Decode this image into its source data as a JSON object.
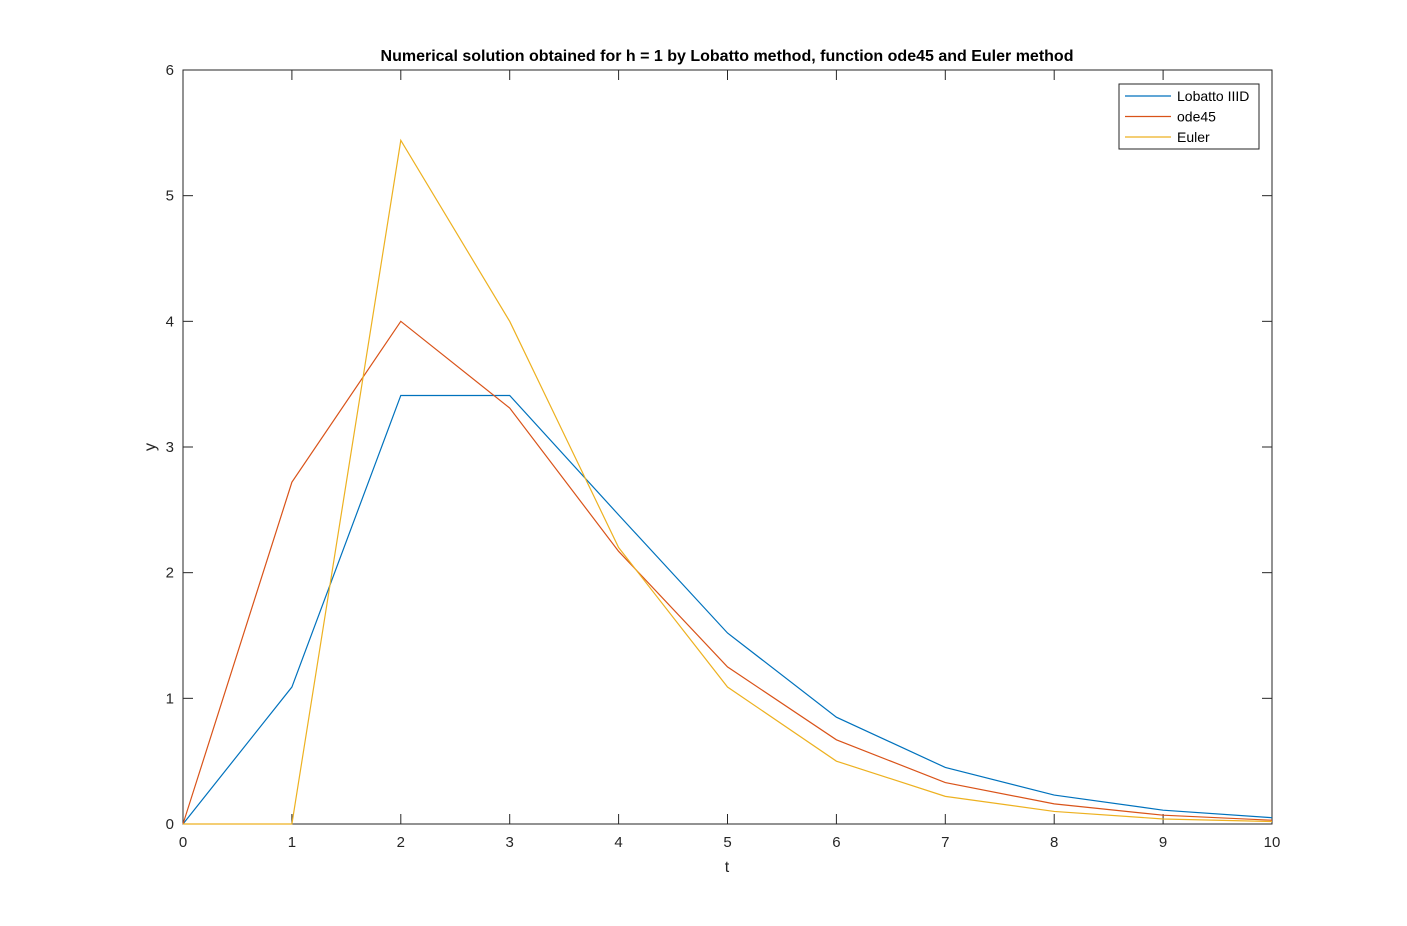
{
  "chart_data": {
    "type": "line",
    "title": "Numerical solution obtained for h = 1 by Lobatto method, function ode45 and Euler method",
    "xlabel": "t",
    "ylabel": "y",
    "xlim": [
      0,
      10
    ],
    "ylim": [
      0,
      6
    ],
    "xticks": [
      "0",
      "1",
      "2",
      "3",
      "4",
      "5",
      "6",
      "7",
      "8",
      "9",
      "10"
    ],
    "yticks": [
      "0",
      "1",
      "2",
      "3",
      "4",
      "5",
      "6"
    ],
    "grid": false,
    "legend_position": "top-right",
    "x": [
      0,
      1,
      2,
      3,
      4,
      5,
      6,
      7,
      8,
      9,
      10
    ],
    "series": [
      {
        "name": "Lobatto IIID",
        "color": "#0072BD",
        "values": [
          0,
          1.09,
          3.41,
          3.41,
          2.46,
          1.52,
          0.85,
          0.45,
          0.23,
          0.11,
          0.05
        ]
      },
      {
        "name": "ode45",
        "color": "#D95319",
        "values": [
          0,
          2.72,
          4.0,
          3.31,
          2.17,
          1.25,
          0.67,
          0.33,
          0.16,
          0.07,
          0.03
        ]
      },
      {
        "name": "Euler",
        "color": "#EDB120",
        "values": [
          0,
          0,
          5.44,
          4.0,
          2.2,
          1.09,
          0.5,
          0.22,
          0.1,
          0.04,
          0.02
        ]
      }
    ]
  }
}
